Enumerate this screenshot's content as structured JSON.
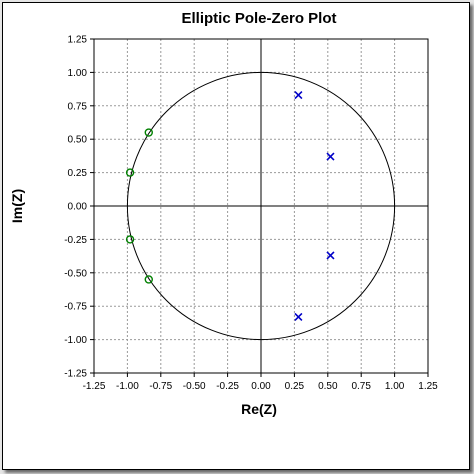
{
  "chart_data": {
    "type": "scatter",
    "title": "Elliptic Pole-Zero Plot",
    "xlabel": "Re(Z)",
    "ylabel": "Im(Z)",
    "xlim": [
      -1.25,
      1.25
    ],
    "ylim": [
      -1.25,
      1.25
    ],
    "xticks": [
      "-1.25",
      "-1.00",
      "-0.75",
      "-0.50",
      "-0.25",
      "0.00",
      "0.25",
      "0.50",
      "0.75",
      "1.00",
      "1.25"
    ],
    "yticks": [
      "1.25",
      "1.00",
      "0.75",
      "0.50",
      "0.25",
      "0.00",
      "-0.25",
      "-0.50",
      "-0.75",
      "-1.00",
      "-1.25"
    ],
    "grid": true,
    "unit_circle": true,
    "series": [
      {
        "marker": "o",
        "color": "#008000",
        "points": [
          [
            -0.84,
            0.55
          ],
          [
            -0.98,
            0.25
          ],
          [
            -0.98,
            -0.25
          ],
          [
            -0.84,
            -0.55
          ]
        ]
      },
      {
        "marker": "x",
        "color": "#0000c8",
        "points": [
          [
            0.28,
            0.83
          ],
          [
            0.52,
            0.37
          ],
          [
            0.52,
            -0.37
          ],
          [
            0.28,
            -0.83
          ]
        ]
      }
    ]
  }
}
